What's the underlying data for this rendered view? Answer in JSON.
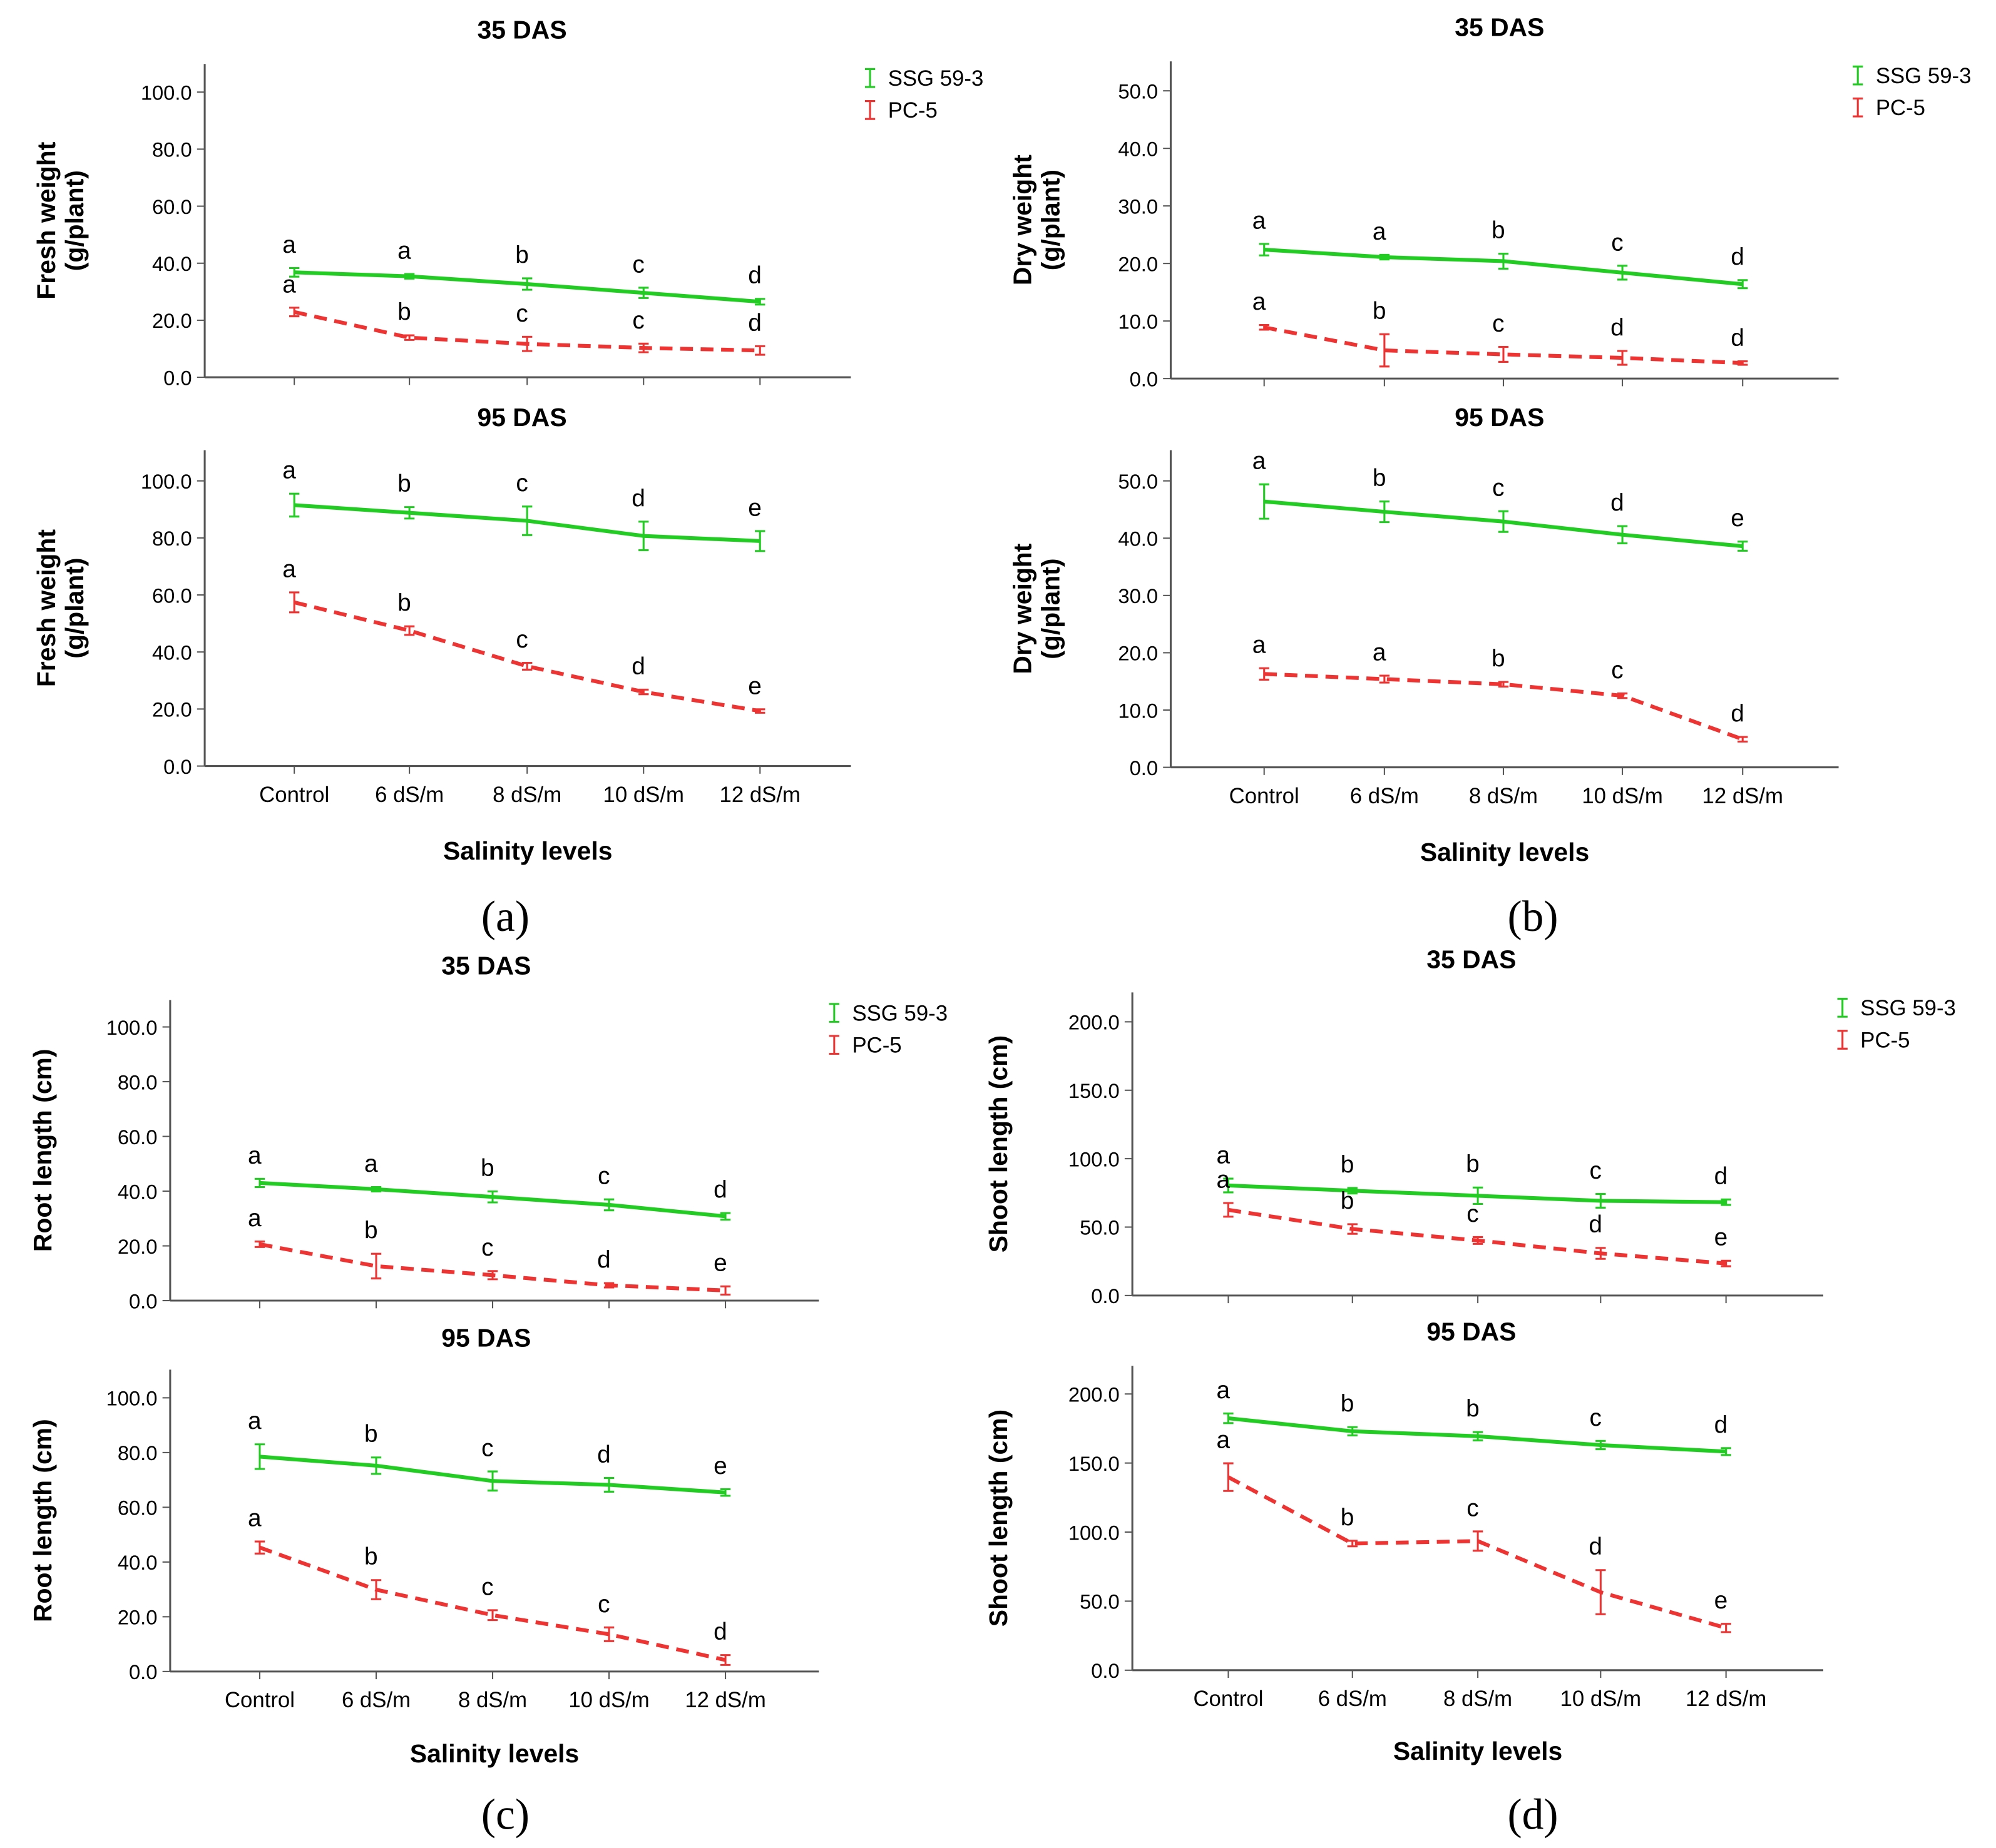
{
  "colors": {
    "ssg": "#22cc22",
    "pc": "#ee3333",
    "axis": "#555555"
  },
  "panel_labels": [
    "(a)",
    "(b)",
    "(c)",
    "(d)"
  ],
  "chart_data": [
    {
      "panel": "a",
      "type": "line",
      "title": "35 DAS",
      "ylabel": [
        "Fresh weight",
        "(g/plant)"
      ],
      "ylim": [
        0,
        100
      ],
      "yticks": [
        "0.0",
        "20.0",
        "40.0",
        "60.0",
        "80.0",
        "100.0"
      ],
      "tickstep": 20,
      "categories": [
        "Control",
        "6 dS/m",
        "8 dS/m",
        "10 dS/m",
        "12 dS/m"
      ],
      "xlabel": "",
      "legend": [
        "SSG 59-3",
        "PC-5"
      ],
      "legend_position": "top-right",
      "series": [
        {
          "name": "SSG 59-3",
          "values": [
            36.8,
            35.4,
            32.7,
            29.6,
            26.5
          ],
          "errors": [
            1.5,
            0.8,
            2,
            1.8,
            1
          ],
          "letters": [
            "a",
            "a",
            "b",
            "c",
            "d"
          ]
        },
        {
          "name": "PC-5",
          "values": [
            22.9,
            13.9,
            11.7,
            10.3,
            9.4
          ],
          "errors": [
            1.5,
            0.8,
            2.5,
            1.5,
            1.5
          ],
          "letters": [
            "a",
            "b",
            "c",
            "c",
            "d"
          ]
        }
      ]
    },
    {
      "panel": "a",
      "type": "line",
      "title": "95 DAS",
      "ylabel": [
        "Fresh weight",
        "(g/plant)"
      ],
      "ylim": [
        0,
        100
      ],
      "yticks": [
        "0.0",
        "20.0",
        "40.0",
        "60.0",
        "80.0",
        "100.0"
      ],
      "tickstep": 20,
      "categories": [
        "Control",
        "6 dS/m",
        "8 dS/m",
        "10 dS/m",
        "12 dS/m"
      ],
      "xlabel": "Salinity levels",
      "series": [
        {
          "name": "SSG 59-3",
          "values": [
            91.5,
            88.8,
            86,
            80.7,
            78.9
          ],
          "errors": [
            4,
            2,
            5,
            5,
            3.5
          ],
          "letters": [
            "a",
            "b",
            "c",
            "d",
            "e"
          ]
        },
        {
          "name": "PC-5",
          "values": [
            57.4,
            47.5,
            35,
            26,
            19.3
          ],
          "errors": [
            3.5,
            1.5,
            1.2,
            0.8,
            0.6
          ],
          "letters": [
            "a",
            "b",
            "c",
            "d",
            "e"
          ]
        }
      ]
    },
    {
      "panel": "b",
      "type": "line",
      "title": "35 DAS",
      "ylabel": [
        "Dry weight",
        "(g/plant)"
      ],
      "ylim": [
        0,
        50
      ],
      "yticks": [
        "0.0",
        "10.0",
        "20.0",
        "30.0",
        "40.0",
        "50.0"
      ],
      "tickstep": 10,
      "categories": [
        "Control",
        "6 dS/m",
        "8 dS/m",
        "10 dS/m",
        "12 dS/m"
      ],
      "xlabel": "",
      "legend": [
        "SSG 59-3",
        "PC-5"
      ],
      "legend_position": "top-right",
      "series": [
        {
          "name": "SSG 59-3",
          "values": [
            22.4,
            21.1,
            20.4,
            18.4,
            16.4
          ],
          "errors": [
            1,
            0.4,
            1.3,
            1.2,
            0.7
          ],
          "letters": [
            "a",
            "a",
            "b",
            "c",
            "d"
          ]
        },
        {
          "name": "PC-5",
          "values": [
            8.9,
            4.9,
            4.2,
            3.6,
            2.7
          ],
          "errors": [
            0.4,
            2.8,
            1.3,
            1.2,
            0.3
          ],
          "letters": [
            "a",
            "b",
            "c",
            "d",
            "d"
          ]
        }
      ]
    },
    {
      "panel": "b",
      "type": "line",
      "title": "95 DAS",
      "ylabel": [
        "Dry weight",
        "(g/plant)"
      ],
      "ylim": [
        0,
        50
      ],
      "yticks": [
        "0.0",
        "10.0",
        "20.0",
        "30.0",
        "40.0",
        "50.0"
      ],
      "tickstep": 10,
      "categories": [
        "Control",
        "6 dS/m",
        "8 dS/m",
        "10 dS/m",
        "12 dS/m"
      ],
      "xlabel": "Salinity levels",
      "series": [
        {
          "name": "SSG 59-3",
          "values": [
            46.4,
            44.6,
            42.9,
            40.6,
            38.6
          ],
          "errors": [
            3,
            1.8,
            1.8,
            1.5,
            0.8
          ],
          "letters": [
            "a",
            "b",
            "c",
            "d",
            "e"
          ]
        },
        {
          "name": "PC-5",
          "values": [
            16.3,
            15.4,
            14.5,
            12.5,
            4.9
          ],
          "errors": [
            1,
            0.6,
            0.4,
            0.4,
            0.4
          ],
          "letters": [
            "a",
            "a",
            "b",
            "c",
            "d"
          ]
        }
      ]
    },
    {
      "panel": "c",
      "type": "line",
      "title": "35 DAS",
      "ylabel": [
        "Root length (cm)"
      ],
      "ylim": [
        0,
        100
      ],
      "yticks": [
        "0.0",
        "20.0",
        "40.0",
        "60.0",
        "80.0",
        "100.0"
      ],
      "tickstep": 20,
      "categories": [
        "Control",
        "6 dS/m",
        "8 dS/m",
        "10 dS/m",
        "12 dS/m"
      ],
      "xlabel": "",
      "legend": [
        "SSG 59-3",
        "PC-5"
      ],
      "legend_position": "top-right",
      "series": [
        {
          "name": "SSG 59-3",
          "values": [
            43,
            40.7,
            37.9,
            35,
            30.8
          ],
          "errors": [
            1.5,
            0.8,
            2,
            2,
            1.2
          ],
          "letters": [
            "a",
            "a",
            "b",
            "c",
            "d"
          ]
        },
        {
          "name": "PC-5",
          "values": [
            20.6,
            12.6,
            9.3,
            5.6,
            3.7
          ],
          "errors": [
            1,
            4.5,
            1.5,
            0.8,
            1.5
          ],
          "letters": [
            "a",
            "b",
            "c",
            "d",
            "e"
          ]
        }
      ]
    },
    {
      "panel": "c",
      "type": "line",
      "title": "95 DAS",
      "ylabel": [
        "Root length (cm)"
      ],
      "ylim": [
        0,
        100
      ],
      "yticks": [
        "0.0",
        "20.0",
        "40.0",
        "60.0",
        "80.0",
        "100.0"
      ],
      "tickstep": 20,
      "categories": [
        "Control",
        "6 dS/m",
        "8 dS/m",
        "10 dS/m",
        "12 dS/m"
      ],
      "xlabel": "Salinity levels",
      "series": [
        {
          "name": "SSG 59-3",
          "values": [
            78.5,
            75.2,
            69.6,
            68.2,
            65.4
          ],
          "errors": [
            4.5,
            3,
            3.5,
            2.5,
            1.2
          ],
          "letters": [
            "a",
            "b",
            "c",
            "d",
            "e"
          ]
        },
        {
          "name": "PC-5",
          "values": [
            45.3,
            29.9,
            20.6,
            13.6,
            4.2
          ],
          "errors": [
            2.2,
            3.5,
            1.8,
            2.5,
            1.8
          ],
          "letters": [
            "a",
            "b",
            "c",
            "c",
            "d"
          ]
        }
      ]
    },
    {
      "panel": "d",
      "type": "line",
      "title": "35 DAS",
      "ylabel": [
        "Shoot length (cm)"
      ],
      "ylim": [
        0,
        200
      ],
      "yticks": [
        "0.0",
        "50.0",
        "100.0",
        "150.0",
        "200.0"
      ],
      "tickstep": 50,
      "categories": [
        "Control",
        "6 dS/m",
        "8 dS/m",
        "10 dS/m",
        "12 dS/m"
      ],
      "xlabel": "",
      "legend": [
        "SSG 59-3",
        "PC-5"
      ],
      "legend_position": "top-right",
      "series": [
        {
          "name": "SSG 59-3",
          "values": [
            80.4,
            76.6,
            72.9,
            69.2,
            68.2
          ],
          "errors": [
            5,
            2,
            6,
            5,
            2
          ],
          "letters": [
            "a",
            "b",
            "b",
            "c",
            "d"
          ]
        },
        {
          "name": "PC-5",
          "values": [
            62.6,
            48.6,
            40.2,
            30.8,
            23.4
          ],
          "errors": [
            5,
            3.5,
            2.5,
            4,
            2
          ],
          "letters": [
            "a",
            "b",
            "c",
            "d",
            "e"
          ]
        }
      ]
    },
    {
      "panel": "d",
      "type": "line",
      "title": "95 DAS",
      "ylabel": [
        "Shoot length (cm)"
      ],
      "ylim": [
        0,
        200
      ],
      "yticks": [
        "0.0",
        "50.0",
        "100.0",
        "150.0",
        "200.0"
      ],
      "tickstep": 50,
      "categories": [
        "Control",
        "6 dS/m",
        "8 dS/m",
        "10 dS/m",
        "12 dS/m"
      ],
      "xlabel": "Salinity levels",
      "series": [
        {
          "name": "SSG 59-3",
          "values": [
            182.4,
            173,
            169.4,
            163,
            158.3
          ],
          "errors": [
            3.5,
            3,
            3,
            3,
            2.5
          ],
          "letters": [
            "a",
            "b",
            "b",
            "c",
            "d"
          ]
        },
        {
          "name": "PC-5",
          "values": [
            139.8,
            91.7,
            93.5,
            56.5,
            30.6
          ],
          "errors": [
            10,
            2,
            7,
            16,
            3
          ],
          "letters": [
            "a",
            "b",
            "c",
            "d",
            "e"
          ]
        }
      ]
    }
  ]
}
